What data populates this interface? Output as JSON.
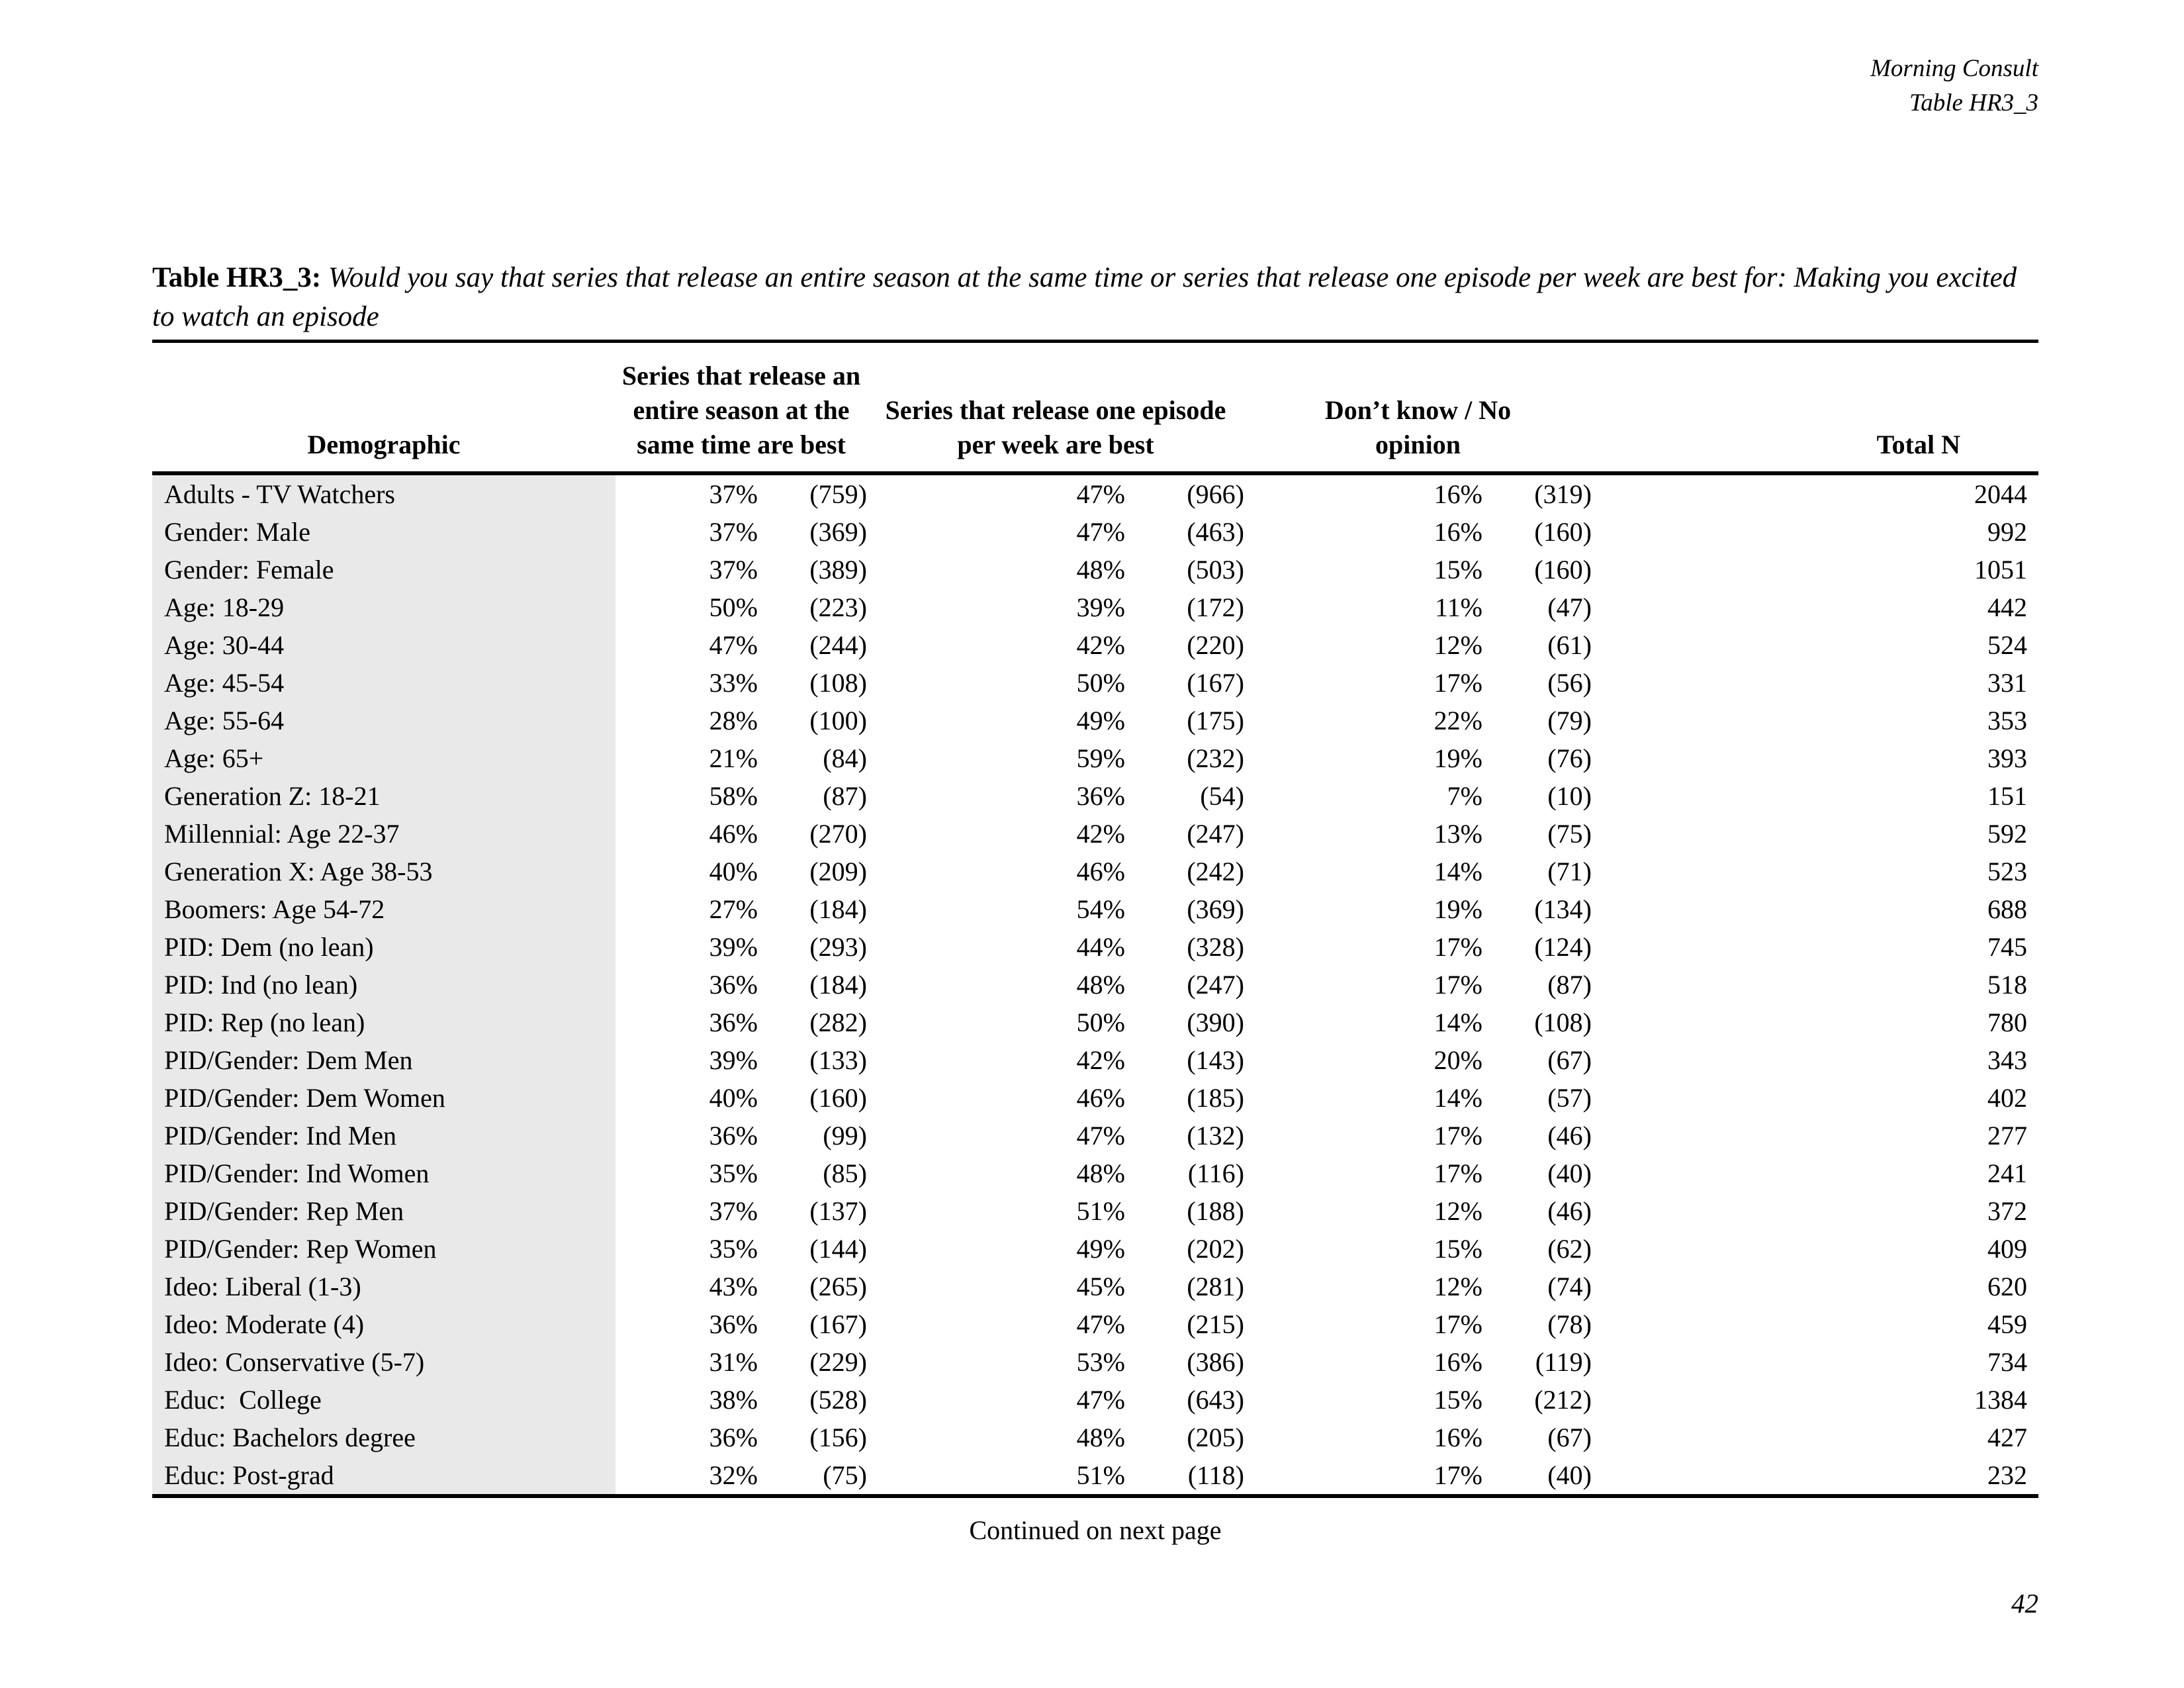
{
  "page_header": {
    "brand": "Morning Consult",
    "table_ref": "Table HR3_3"
  },
  "title": {
    "label": "Table HR3_3:",
    "question": "Would you say that series that release an entire season at the same time or series that release one episode per week are best for: Making you excited to watch an episode"
  },
  "table": {
    "col_demographic": "Demographic",
    "group_cols": [
      "Series that release an entire season at the same time are best",
      "Series that release one episode per week are best",
      "Don’t know / No opinion"
    ],
    "col_total": "Total N",
    "rows": [
      {
        "label": "Adults - TV Watchers",
        "cells": [
          "37%",
          "(759)",
          "47%",
          "(966)",
          "16%",
          "(319)",
          "2044"
        ]
      },
      {
        "label": "Gender: Male",
        "cells": [
          "37%",
          "(369)",
          "47%",
          "(463)",
          "16%",
          "(160)",
          "992"
        ]
      },
      {
        "label": "Gender: Female",
        "cells": [
          "37%",
          "(389)",
          "48%",
          "(503)",
          "15%",
          "(160)",
          "1051"
        ]
      },
      {
        "label": "Age: 18-29",
        "cells": [
          "50%",
          "(223)",
          "39%",
          "(172)",
          "11%",
          "(47)",
          "442"
        ]
      },
      {
        "label": "Age: 30-44",
        "cells": [
          "47%",
          "(244)",
          "42%",
          "(220)",
          "12%",
          "(61)",
          "524"
        ]
      },
      {
        "label": "Age: 45-54",
        "cells": [
          "33%",
          "(108)",
          "50%",
          "(167)",
          "17%",
          "(56)",
          "331"
        ]
      },
      {
        "label": "Age: 55-64",
        "cells": [
          "28%",
          "(100)",
          "49%",
          "(175)",
          "22%",
          "(79)",
          "353"
        ]
      },
      {
        "label": "Age: 65+",
        "cells": [
          "21%",
          "(84)",
          "59%",
          "(232)",
          "19%",
          "(76)",
          "393"
        ]
      },
      {
        "label": "Generation Z: 18-21",
        "cells": [
          "58%",
          "(87)",
          "36%",
          "(54)",
          "7%",
          "(10)",
          "151"
        ]
      },
      {
        "label": "Millennial: Age 22-37",
        "cells": [
          "46%",
          "(270)",
          "42%",
          "(247)",
          "13%",
          "(75)",
          "592"
        ]
      },
      {
        "label": "Generation X: Age 38-53",
        "cells": [
          "40%",
          "(209)",
          "46%",
          "(242)",
          "14%",
          "(71)",
          "523"
        ]
      },
      {
        "label": "Boomers: Age 54-72",
        "cells": [
          "27%",
          "(184)",
          "54%",
          "(369)",
          "19%",
          "(134)",
          "688"
        ]
      },
      {
        "label": "PID: Dem (no lean)",
        "cells": [
          "39%",
          "(293)",
          "44%",
          "(328)",
          "17%",
          "(124)",
          "745"
        ]
      },
      {
        "label": "PID: Ind (no lean)",
        "cells": [
          "36%",
          "(184)",
          "48%",
          "(247)",
          "17%",
          "(87)",
          "518"
        ]
      },
      {
        "label": "PID: Rep (no lean)",
        "cells": [
          "36%",
          "(282)",
          "50%",
          "(390)",
          "14%",
          "(108)",
          "780"
        ]
      },
      {
        "label": "PID/Gender: Dem Men",
        "cells": [
          "39%",
          "(133)",
          "42%",
          "(143)",
          "20%",
          "(67)",
          "343"
        ]
      },
      {
        "label": "PID/Gender: Dem Women",
        "cells": [
          "40%",
          "(160)",
          "46%",
          "(185)",
          "14%",
          "(57)",
          "402"
        ]
      },
      {
        "label": "PID/Gender: Ind Men",
        "cells": [
          "36%",
          "(99)",
          "47%",
          "(132)",
          "17%",
          "(46)",
          "277"
        ]
      },
      {
        "label": "PID/Gender: Ind Women",
        "cells": [
          "35%",
          "(85)",
          "48%",
          "(116)",
          "17%",
          "(40)",
          "241"
        ]
      },
      {
        "label": "PID/Gender: Rep Men",
        "cells": [
          "37%",
          "(137)",
          "51%",
          "(188)",
          "12%",
          "(46)",
          "372"
        ]
      },
      {
        "label": "PID/Gender: Rep Women",
        "cells": [
          "35%",
          "(144)",
          "49%",
          "(202)",
          "15%",
          "(62)",
          "409"
        ]
      },
      {
        "label": "Ideo: Liberal (1-3)",
        "cells": [
          "43%",
          "(265)",
          "45%",
          "(281)",
          "12%",
          "(74)",
          "620"
        ]
      },
      {
        "label": "Ideo: Moderate (4)",
        "cells": [
          "36%",
          "(167)",
          "47%",
          "(215)",
          "17%",
          "(78)",
          "459"
        ]
      },
      {
        "label": "Ideo: Conservative (5-7)",
        "cells": [
          "31%",
          "(229)",
          "53%",
          "(386)",
          "16%",
          "(119)",
          "734"
        ]
      },
      {
        "label": "Educ:  College",
        "cells": [
          "38%",
          "(528)",
          "47%",
          "(643)",
          "15%",
          "(212)",
          "1384"
        ]
      },
      {
        "label": "Educ: Bachelors degree",
        "cells": [
          "36%",
          "(156)",
          "48%",
          "(205)",
          "16%",
          "(67)",
          "427"
        ]
      },
      {
        "label": "Educ: Post-grad",
        "cells": [
          "32%",
          "(75)",
          "51%",
          "(118)",
          "17%",
          "(40)",
          "232"
        ]
      }
    ]
  },
  "footer": {
    "continued": "Continued on next page",
    "page_number": "42"
  }
}
